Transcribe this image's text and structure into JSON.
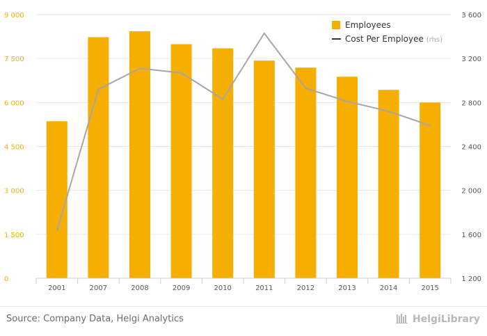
{
  "chart_data": {
    "type": "bar",
    "categories": [
      "2001",
      "2007",
      "2008",
      "2009",
      "2010",
      "2011",
      "2012",
      "2013",
      "2014",
      "2015"
    ],
    "series": [
      {
        "name": "Employees",
        "type": "bar",
        "axis": "left",
        "color": "#f6ae00",
        "values": [
          5360,
          8230,
          8430,
          7990,
          7850,
          7430,
          7190,
          6880,
          6430,
          6000
        ]
      },
      {
        "name": "Cost Per Employee",
        "legend_suffix": "(rhs)",
        "type": "line",
        "axis": "right",
        "color": "#a6a6a6",
        "values": [
          1630,
          2920,
          3110,
          3070,
          2830,
          3430,
          2930,
          2810,
          2720,
          2590
        ]
      }
    ],
    "y_left": {
      "ylim": [
        0,
        9000
      ],
      "ticks": [
        "0",
        "1 500",
        "3 000",
        "4 500",
        "6 000",
        "7 500",
        "9 000"
      ],
      "tick_values": [
        0,
        1500,
        3000,
        4500,
        6000,
        7500,
        9000
      ]
    },
    "y_right": {
      "ylim": [
        1200,
        3600
      ],
      "ticks": [
        "1 200",
        "1 600",
        "2 000",
        "2 400",
        "2 800",
        "3 200",
        "3 600"
      ],
      "tick_values": [
        1200,
        1600,
        2000,
        2400,
        2800,
        3200,
        3600
      ]
    },
    "title": "",
    "xlabel": "",
    "ylabel": "",
    "grid": "horizontal",
    "legend": "top-right"
  },
  "colors": {
    "left_axis_text": "#f6ae00",
    "right_axis_text": "#555555",
    "grid": "#e6e6e6",
    "legend_line": "#333333"
  },
  "footer": {
    "source": "Source: Company Data, Helgi Analytics",
    "brand": "HelgiLibrary",
    "brand_icon": "library-icon"
  }
}
